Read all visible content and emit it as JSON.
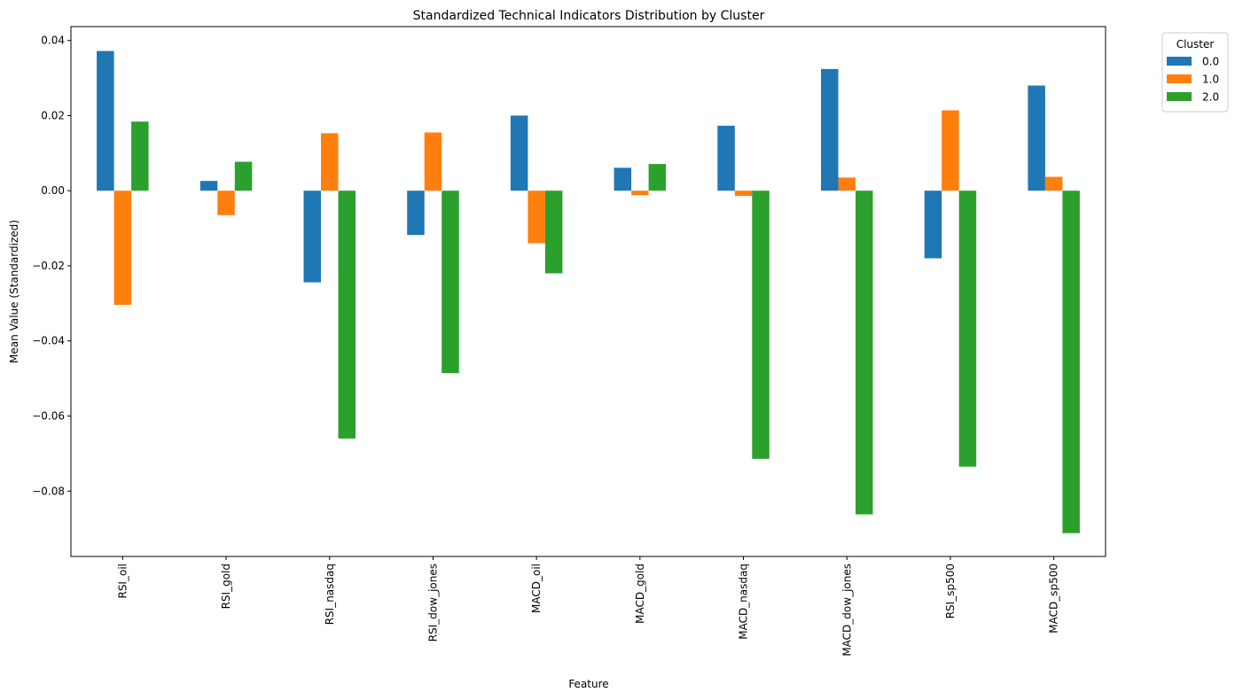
{
  "chart_data": {
    "type": "bar",
    "title": "Standardized Technical Indicators Distribution by Cluster",
    "xlabel": "Feature",
    "ylabel": "Mean Value (Standardized)",
    "categories": [
      "RSI_oil",
      "RSI_gold",
      "RSI_nasdaq",
      "RSI_dow_jones",
      "MACD_oil",
      "MACD_gold",
      "MACD_nasdaq",
      "MACD_dow_jones",
      "RSI_sp500",
      "MACD_sp500"
    ],
    "series": [
      {
        "name": "0.0",
        "color": "#1f77b4",
        "values": [
          0.0372,
          0.0026,
          -0.0244,
          -0.0118,
          0.02,
          0.0061,
          0.0173,
          0.0324,
          -0.018,
          0.028
        ]
      },
      {
        "name": "1.0",
        "color": "#ff7f0e",
        "values": [
          -0.0304,
          -0.0065,
          0.0153,
          0.0155,
          -0.014,
          -0.0012,
          -0.0014,
          0.0035,
          0.0214,
          0.0037
        ]
      },
      {
        "name": "2.0",
        "color": "#2ca02c",
        "values": [
          0.0184,
          0.0077,
          -0.066,
          -0.0486,
          -0.022,
          0.0071,
          -0.0714,
          -0.0862,
          -0.0735,
          -0.0912
        ]
      }
    ],
    "ylim": [
      -0.0974,
      0.0437
    ],
    "yticks": [
      0.04,
      0.02,
      0.0,
      -0.02,
      -0.04,
      -0.06,
      -0.08
    ],
    "ytick_labels": [
      "0.04",
      "0.02",
      "0.00",
      "−0.02",
      "−0.04",
      "−0.06",
      "−0.08"
    ],
    "grid": false,
    "legend": {
      "title": "Cluster",
      "placement": "outside-top-right"
    }
  }
}
